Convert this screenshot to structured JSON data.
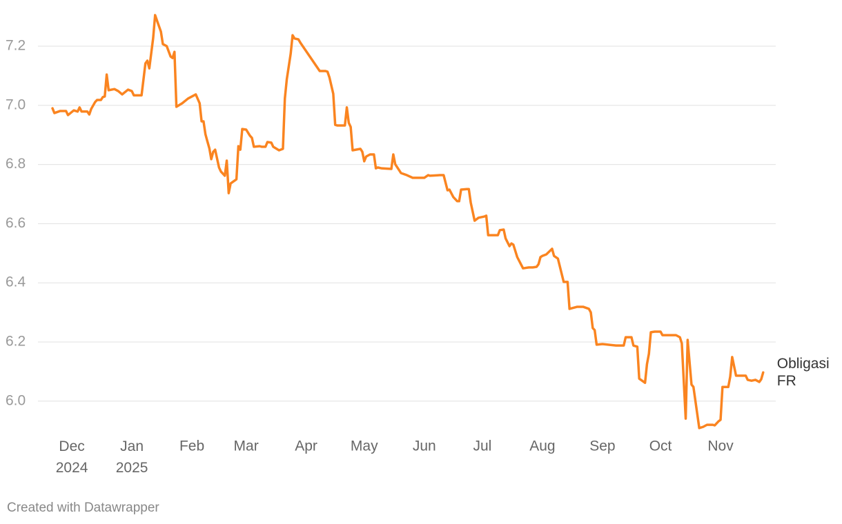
{
  "chart_data": {
    "type": "line",
    "credit": "Created with Datawrapper",
    "x": [
      -10,
      -9,
      -6,
      -3,
      -2,
      1,
      3,
      4,
      5,
      8,
      9,
      10,
      12,
      13,
      15,
      16,
      17,
      18,
      19,
      22,
      24,
      26,
      29,
      31,
      32,
      36,
      38,
      39,
      40,
      42,
      43,
      44,
      46,
      47,
      49,
      51,
      52,
      53,
      54,
      57,
      60,
      64,
      66,
      67,
      68,
      69,
      70,
      71,
      72,
      73,
      74,
      76,
      77,
      79,
      80,
      81,
      82,
      85,
      86,
      87,
      88,
      90,
      92,
      93,
      94,
      97,
      98,
      100,
      101,
      103,
      104,
      107,
      109,
      110,
      111,
      113,
      114,
      115,
      117,
      118,
      128,
      129,
      131,
      132,
      133,
      135,
      136,
      137,
      141,
      142,
      143,
      144,
      145,
      149,
      150,
      151,
      152,
      154,
      156,
      157,
      158,
      160,
      165,
      166,
      167,
      170,
      173,
      176,
      178,
      182,
      184,
      185,
      190,
      192,
      194,
      195,
      197,
      199,
      200,
      201,
      204,
      205,
      206,
      208,
      210,
      213,
      214,
      215,
      220,
      221,
      223,
      224,
      226,
      227,
      228,
      230,
      233,
      236,
      238,
      240,
      241,
      242,
      243,
      245,
      248,
      249,
      251,
      254,
      256,
      257,
      261,
      264,
      267,
      268,
      269,
      270,
      271,
      274,
      281,
      285,
      286,
      289,
      290,
      292,
      293,
      296,
      297,
      298,
      299,
      301,
      304,
      305,
      309,
      311,
      312,
      314,
      315,
      317,
      318,
      320,
      321,
      324,
      326,
      328,
      331,
      332,
      334,
      335,
      336,
      338,
      339,
      340,
      341,
      343,
      345,
      348,
      349,
      351,
      353,
      355,
      356,
      357
    ],
    "series": [
      {
        "name": "Obligasi FR",
        "color": "#fa8420",
        "values": [
          6.99,
          6.974,
          6.981,
          6.981,
          6.967,
          6.983,
          6.979,
          6.993,
          6.979,
          6.979,
          6.969,
          6.988,
          7.011,
          7.018,
          7.018,
          7.028,
          7.03,
          7.104,
          7.051,
          7.055,
          7.048,
          7.037,
          7.053,
          7.048,
          7.034,
          7.034,
          7.142,
          7.151,
          7.125,
          7.228,
          7.305,
          7.286,
          7.249,
          7.207,
          7.2,
          7.165,
          7.16,
          7.181,
          6.995,
          7.007,
          7.023,
          7.037,
          7.007,
          6.946,
          6.946,
          6.902,
          6.878,
          6.855,
          6.818,
          6.843,
          6.85,
          6.79,
          6.776,
          6.762,
          6.813,
          6.703,
          6.736,
          6.75,
          6.862,
          6.85,
          6.92,
          6.918,
          6.897,
          6.89,
          6.86,
          6.862,
          6.86,
          6.86,
          6.876,
          6.874,
          6.86,
          6.848,
          6.853,
          7.023,
          7.088,
          7.174,
          7.237,
          7.226,
          7.223,
          7.212,
          7.116,
          7.116,
          7.116,
          7.114,
          7.095,
          7.039,
          6.934,
          6.932,
          6.932,
          6.993,
          6.941,
          6.927,
          6.848,
          6.853,
          6.843,
          6.811,
          6.827,
          6.834,
          6.834,
          6.787,
          6.79,
          6.787,
          6.785,
          6.834,
          6.801,
          6.771,
          6.764,
          6.755,
          6.755,
          6.755,
          6.764,
          6.762,
          6.764,
          6.764,
          6.713,
          6.715,
          6.69,
          6.676,
          6.676,
          6.715,
          6.717,
          6.717,
          6.671,
          6.61,
          6.62,
          6.624,
          6.627,
          6.561,
          6.561,
          6.578,
          6.58,
          6.55,
          6.524,
          6.533,
          6.529,
          6.487,
          6.449,
          6.452,
          6.452,
          6.454,
          6.463,
          6.487,
          6.491,
          6.496,
          6.515,
          6.491,
          6.482,
          6.403,
          6.403,
          6.312,
          6.319,
          6.319,
          6.312,
          6.3,
          6.247,
          6.24,
          6.191,
          6.193,
          6.188,
          6.188,
          6.216,
          6.216,
          6.188,
          6.184,
          6.076,
          6.062,
          6.125,
          6.16,
          6.233,
          6.235,
          6.235,
          6.223,
          6.223,
          6.223,
          6.223,
          6.216,
          6.195,
          5.941,
          6.207,
          6.056,
          6.048,
          5.909,
          5.913,
          5.92,
          5.92,
          5.918,
          5.932,
          5.937,
          6.048,
          6.048,
          6.048,
          6.083,
          6.149,
          6.086,
          6.086,
          6.086,
          6.072,
          6.069,
          6.072,
          6.065,
          6.074,
          6.097
        ]
      }
    ],
    "xlim": [
      -17.5,
      363.5
    ],
    "xticks": [
      {
        "value": 0,
        "label": "Dec 2024"
      },
      {
        "value": 31,
        "label": "Jan 2025"
      },
      {
        "value": 62,
        "label": "Feb"
      },
      {
        "value": 90,
        "label": "Mar"
      },
      {
        "value": 121,
        "label": "Apr"
      },
      {
        "value": 151,
        "label": "May"
      },
      {
        "value": 182,
        "label": "Jun"
      },
      {
        "value": 212,
        "label": "Jul"
      },
      {
        "value": 243,
        "label": "Aug"
      },
      {
        "value": 274,
        "label": "Sep"
      },
      {
        "value": 304,
        "label": "Oct"
      },
      {
        "value": 335,
        "label": "Nov"
      }
    ],
    "ylim": [
      5.9,
      7.32
    ],
    "yticks": [
      {
        "value": 6,
        "label": "6.0"
      },
      6.2,
      6.4,
      6.6,
      6.8,
      {
        "value": 7,
        "label": "7.0"
      },
      7.2
    ],
    "grid": true
  }
}
